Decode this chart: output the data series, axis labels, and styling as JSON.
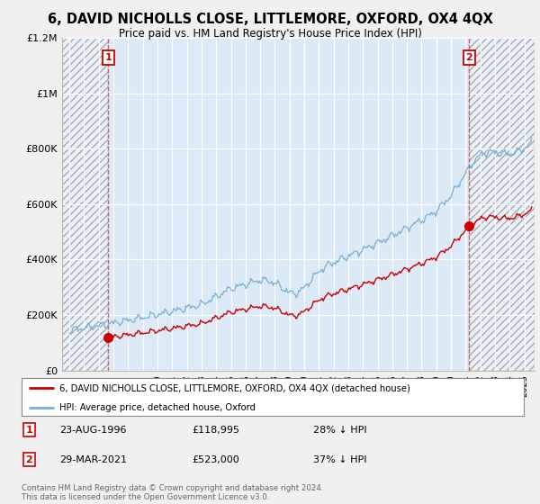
{
  "title": "6, DAVID NICHOLLS CLOSE, LITTLEMORE, OXFORD, OX4 4QX",
  "subtitle": "Price paid vs. HM Land Registry's House Price Index (HPI)",
  "ylim": [
    0,
    1200000
  ],
  "yticks": [
    0,
    200000,
    400000,
    600000,
    800000,
    1000000,
    1200000
  ],
  "ytick_labels": [
    "£0",
    "£200K",
    "£400K",
    "£600K",
    "£800K",
    "£1M",
    "£1.2M"
  ],
  "hpi_color": "#7bafd4",
  "price_color": "#cc0000",
  "annotation1_date": "23-AUG-1996",
  "annotation1_price": "£118,995",
  "annotation1_hpi": "28% ↓ HPI",
  "annotation2_date": "29-MAR-2021",
  "annotation2_price": "£523,000",
  "annotation2_hpi": "37% ↓ HPI",
  "sale1_x": 1996.65,
  "sale1_y": 118995,
  "sale2_x": 2021.25,
  "sale2_y": 523000,
  "legend_label1": "6, DAVID NICHOLLS CLOSE, LITTLEMORE, OXFORD, OX4 4QX (detached house)",
  "legend_label2": "HPI: Average price, detached house, Oxford",
  "footnote": "Contains HM Land Registry data © Crown copyright and database right 2024.\nThis data is licensed under the Open Government Licence v3.0.",
  "background_color": "#f0f0f0",
  "plot_bg_color": "#dce9f7",
  "xmin": 1993.5,
  "xmax": 2025.7,
  "hatch_right_start": 2021.25
}
